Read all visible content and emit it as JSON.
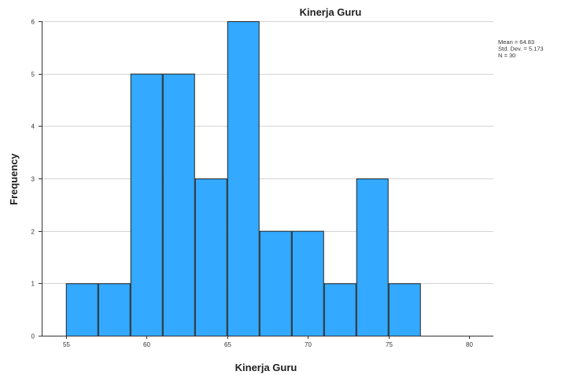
{
  "chart_data": {
    "type": "bar",
    "title": "Kinerja Guru",
    "xlabel": "Kinerja Guru",
    "ylabel": "Frequency",
    "bins": [
      {
        "x0": 55,
        "x1": 57,
        "value": 1
      },
      {
        "x0": 57,
        "x1": 59,
        "value": 1
      },
      {
        "x0": 59,
        "x1": 61,
        "value": 5
      },
      {
        "x0": 61,
        "x1": 63,
        "value": 5
      },
      {
        "x0": 63,
        "x1": 65,
        "value": 3
      },
      {
        "x0": 65,
        "x1": 67,
        "value": 6
      },
      {
        "x0": 67,
        "x1": 69,
        "value": 2
      },
      {
        "x0": 69,
        "x1": 71,
        "value": 2
      },
      {
        "x0": 71,
        "x1": 73,
        "value": 1
      },
      {
        "x0": 73,
        "x1": 75,
        "value": 3
      },
      {
        "x0": 75,
        "x1": 77,
        "value": 1
      }
    ],
    "xlim": [
      53.5,
      81.5
    ],
    "ylim": [
      0,
      6
    ],
    "xticks": [
      55,
      60,
      65,
      70,
      75,
      80
    ],
    "yticks": [
      0,
      1,
      2,
      3,
      4,
      5,
      6
    ],
    "grid": true,
    "bar_color": "#33a9ff",
    "stats": [
      "Mean = 64.83",
      "Std. Dev. = 5.173",
      "N = 30"
    ]
  }
}
